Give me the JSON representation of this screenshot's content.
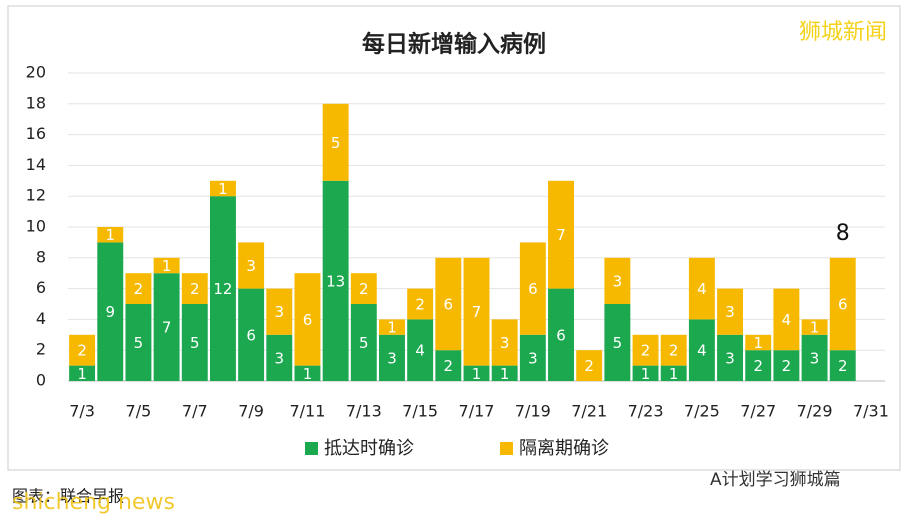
{
  "chart_data": {
    "type": "bar",
    "stacked": true,
    "title": "每日新增输入病例",
    "categories": [
      "7/3",
      null,
      "7/5",
      null,
      "7/7",
      null,
      "7/9",
      null,
      "7/11",
      null,
      "7/13",
      null,
      "7/15",
      null,
      "7/17",
      null,
      "7/19",
      null,
      "7/21",
      null,
      "7/23",
      null,
      "7/25",
      null,
      "7/27",
      null,
      "7/29",
      null,
      "7/31"
    ],
    "series": [
      {
        "name": "抵达时确诊",
        "color": "#1ba84f",
        "values": [
          1,
          9,
          5,
          7,
          5,
          12,
          6,
          3,
          1,
          13,
          5,
          3,
          4,
          2,
          1,
          1,
          3,
          6,
          0,
          5,
          1,
          1,
          4,
          3,
          2,
          2,
          3,
          2,
          null
        ]
      },
      {
        "name": "隔离期确诊",
        "color": "#f6b900",
        "values": [
          2,
          1,
          2,
          1,
          2,
          1,
          3,
          3,
          6,
          5,
          2,
          1,
          2,
          6,
          7,
          3,
          6,
          7,
          2,
          3,
          2,
          2,
          4,
          3,
          1,
          4,
          1,
          6,
          null
        ]
      }
    ],
    "ylim": [
      0,
      20
    ],
    "yticks": [
      0,
      2,
      4,
      6,
      8,
      10,
      12,
      14,
      16,
      18,
      20
    ],
    "grid": true,
    "annotation": "8"
  },
  "watermark": "狮城新闻",
  "source": "图表：联合早报",
  "footer_watermark": "shicheng news",
  "footer_brand": "A计划学习狮城篇"
}
